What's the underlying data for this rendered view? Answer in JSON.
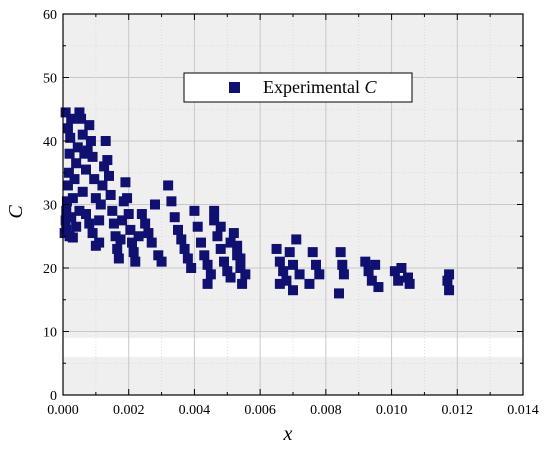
{
  "chart_data": {
    "type": "scatter",
    "xlabel": "x",
    "ylabel": "C",
    "xlim": [
      0,
      0.014
    ],
    "ylim": [
      0,
      60
    ],
    "x_ticks": [
      "0.000",
      "0.002",
      "0.004",
      "0.006",
      "0.008",
      "0.010",
      "0.012",
      "0.014"
    ],
    "y_ticks": [
      "0",
      "10",
      "20",
      "30",
      "40",
      "50",
      "60"
    ],
    "grid": true,
    "legend": {
      "position": "top-center",
      "entries": [
        {
          "text": "Experimental ",
          "italic": "C"
        }
      ]
    },
    "marker_color": "#0f1070",
    "background_color": "#efefef",
    "series": [
      {
        "name": "Experimental C",
        "marker": "square",
        "points": [
          [
            5e-05,
            25.5
          ],
          [
            8e-05,
            27.5
          ],
          [
            0.0001,
            29.0
          ],
          [
            0.00012,
            30.5
          ],
          [
            0.00015,
            33.0
          ],
          [
            0.00018,
            35.0
          ],
          [
            0.0002,
            38.0
          ],
          [
            0.00022,
            40.5
          ],
          [
            0.00025,
            43.5
          ],
          [
            8e-05,
            44.5
          ],
          [
            0.00015,
            42.0
          ],
          [
            0.0001,
            26.0
          ],
          [
            0.0002,
            25.0
          ],
          [
            0.00025,
            28.0
          ],
          [
            0.0003,
            31.0
          ],
          [
            0.00035,
            34.0
          ],
          [
            0.0004,
            36.5
          ],
          [
            0.00045,
            39.0
          ],
          [
            0.0005,
            44.5
          ],
          [
            0.00055,
            43.5
          ],
          [
            0.0006,
            41.0
          ],
          [
            0.00065,
            38.0
          ],
          [
            0.0003,
            24.8
          ],
          [
            0.0004,
            26.5
          ],
          [
            0.0005,
            29.0
          ],
          [
            0.0006,
            32.0
          ],
          [
            0.0007,
            35.5
          ],
          [
            0.00075,
            38.5
          ],
          [
            0.0008,
            42.5
          ],
          [
            0.00085,
            40.0
          ],
          [
            0.0009,
            37.5
          ],
          [
            0.00095,
            34.0
          ],
          [
            0.001,
            31.0
          ],
          [
            0.0007,
            28.5
          ],
          [
            0.0008,
            27.0
          ],
          [
            0.0009,
            25.5
          ],
          [
            0.001,
            23.5
          ],
          [
            0.0011,
            24.0
          ],
          [
            0.0011,
            27.5
          ],
          [
            0.00115,
            30.0
          ],
          [
            0.0012,
            33.0
          ],
          [
            0.00125,
            36.0
          ],
          [
            0.0013,
            40.0
          ],
          [
            0.00135,
            37.0
          ],
          [
            0.0014,
            34.5
          ],
          [
            0.00145,
            31.5
          ],
          [
            0.0015,
            29.0
          ],
          [
            0.00155,
            27.0
          ],
          [
            0.0016,
            25.0
          ],
          [
            0.00165,
            23.0
          ],
          [
            0.0017,
            21.5
          ],
          [
            0.00175,
            24.5
          ],
          [
            0.0018,
            27.5
          ],
          [
            0.00185,
            30.5
          ],
          [
            0.0019,
            33.5
          ],
          [
            0.00195,
            31.0
          ],
          [
            0.002,
            28.5
          ],
          [
            0.00205,
            26.0
          ],
          [
            0.0021,
            24.0
          ],
          [
            0.00215,
            22.5
          ],
          [
            0.0022,
            21.0
          ],
          [
            0.0023,
            25.0
          ],
          [
            0.0024,
            28.5
          ],
          [
            0.0025,
            27.0
          ],
          [
            0.0026,
            25.5
          ],
          [
            0.0027,
            24.0
          ],
          [
            0.0028,
            30.0
          ],
          [
            0.0029,
            22.0
          ],
          [
            0.003,
            21.0
          ],
          [
            0.0032,
            33.0
          ],
          [
            0.0033,
            30.5
          ],
          [
            0.0034,
            28.0
          ],
          [
            0.0035,
            26.0
          ],
          [
            0.0036,
            24.5
          ],
          [
            0.0037,
            23.0
          ],
          [
            0.0038,
            21.5
          ],
          [
            0.0039,
            20.0
          ],
          [
            0.004,
            29.0
          ],
          [
            0.0041,
            26.5
          ],
          [
            0.0042,
            24.0
          ],
          [
            0.0043,
            22.0
          ],
          [
            0.0044,
            20.5
          ],
          [
            0.0045,
            19.0
          ],
          [
            0.0046,
            27.5
          ],
          [
            0.0047,
            25.0
          ],
          [
            0.0048,
            23.0
          ],
          [
            0.0049,
            21.0
          ],
          [
            0.005,
            19.5
          ],
          [
            0.0051,
            18.5
          ],
          [
            0.0052,
            25.5
          ],
          [
            0.0053,
            23.5
          ],
          [
            0.0054,
            21.5
          ],
          [
            0.0046,
            29.0
          ],
          [
            0.0048,
            26.5
          ],
          [
            0.0051,
            24.0
          ],
          [
            0.0053,
            22.0
          ],
          [
            0.0054,
            20.0
          ],
          [
            0.00545,
            17.5
          ],
          [
            0.00555,
            19.0
          ],
          [
            0.0044,
            17.5
          ],
          [
            0.0065,
            23.0
          ],
          [
            0.0066,
            21.0
          ],
          [
            0.0067,
            19.5
          ],
          [
            0.0068,
            18.0
          ],
          [
            0.0069,
            22.5
          ],
          [
            0.007,
            20.5
          ],
          [
            0.0071,
            24.5
          ],
          [
            0.0066,
            17.5
          ],
          [
            0.007,
            16.5
          ],
          [
            0.0072,
            19.0
          ],
          [
            0.0076,
            22.5
          ],
          [
            0.0077,
            20.5
          ],
          [
            0.0078,
            19.0
          ],
          [
            0.0075,
            17.5
          ],
          [
            0.00845,
            22.5
          ],
          [
            0.0085,
            20.5
          ],
          [
            0.00855,
            19.0
          ],
          [
            0.0084,
            16.0
          ],
          [
            0.0092,
            21.0
          ],
          [
            0.0093,
            19.5
          ],
          [
            0.0094,
            18.0
          ],
          [
            0.0095,
            20.5
          ],
          [
            0.0096,
            17.0
          ],
          [
            0.0101,
            19.5
          ],
          [
            0.0102,
            18.0
          ],
          [
            0.0103,
            20.0
          ],
          [
            0.0105,
            18.5
          ],
          [
            0.01055,
            17.5
          ],
          [
            0.0117,
            18.0
          ],
          [
            0.01175,
            16.5
          ],
          [
            0.01175,
            19.0
          ]
        ]
      }
    ]
  }
}
